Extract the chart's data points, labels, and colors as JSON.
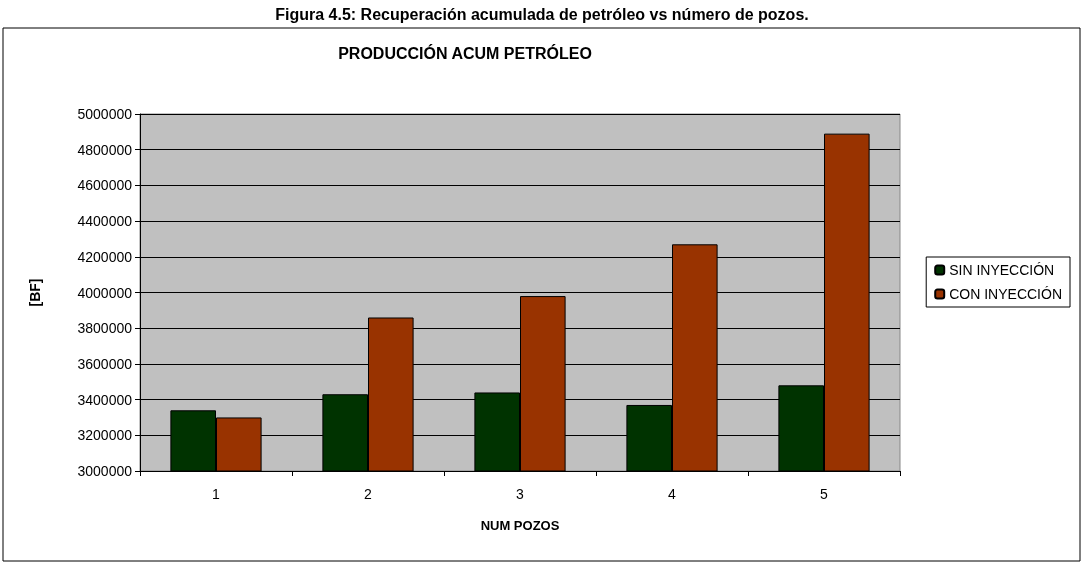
{
  "chart_data": {
    "type": "bar",
    "title": "PRODUCCIÓN ACUM PETRÓLEO",
    "xlabel": "NUM POZOS",
    "ylabel": "[BF]",
    "annotations": [
      "Figura 4.5: Recuperación acumulada de petróleo vs número de pozos."
    ],
    "categories": [
      "1",
      "2",
      "3",
      "4",
      "5"
    ],
    "series": [
      {
        "name": "SIN INYECCIÓN",
        "color": "#003300",
        "values": [
          3340000,
          3430000,
          3440000,
          3370000,
          3480000
        ]
      },
      {
        "name": "CON INYECCIÓN",
        "color": "#993300",
        "values": [
          3300000,
          3860000,
          3980000,
          4270000,
          4890000
        ]
      }
    ],
    "ylim": [
      3000000,
      5000000
    ],
    "yticks": [
      3000000,
      3200000,
      3400000,
      3600000,
      3800000,
      4000000,
      4200000,
      4400000,
      4600000,
      4800000,
      5000000
    ],
    "grid": "y",
    "legend": "right"
  }
}
